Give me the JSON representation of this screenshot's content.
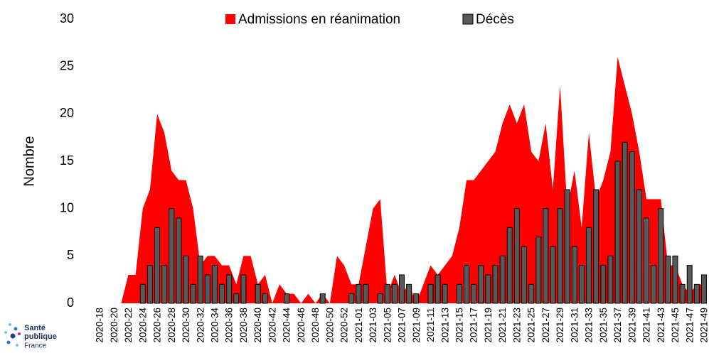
{
  "chart_data": {
    "type": "area-bar",
    "categories": [
      "2020-18",
      null,
      "2020-20",
      null,
      "2020-22",
      null,
      "2020-24",
      null,
      "2020-26",
      null,
      "2020-28",
      null,
      "2020-30",
      null,
      "2020-32",
      null,
      "2020-34",
      null,
      "2020-36",
      null,
      "2020-38",
      null,
      "2020-40",
      null,
      "2020-42",
      null,
      "2020-44",
      null,
      "2020-46",
      null,
      "2020-48",
      null,
      "2020-50",
      null,
      "2020-52",
      null,
      "2021-01",
      null,
      "2021-03",
      null,
      "2021-05",
      null,
      "2021-07",
      null,
      "2021-09",
      null,
      "2021-11",
      null,
      "2021-13",
      null,
      "2021-15",
      null,
      "2021-17",
      null,
      "2021-19",
      null,
      "2021-21",
      null,
      "2021-23",
      null,
      "2021-25",
      null,
      "2021-27",
      null,
      "2021-29",
      null,
      "2021-31",
      null,
      "2021-33",
      null,
      "2021-35",
      null,
      "2021-37",
      null,
      "2021-39",
      null,
      "2021-41",
      null,
      "2021-43",
      null,
      "2021-45",
      null,
      "2021-47",
      null,
      "2021-49"
    ],
    "series": [
      {
        "name": "Admissions en réanimation",
        "color": "#ff0000",
        "kind": "area",
        "values": [
          0,
          0,
          0,
          0,
          3,
          3,
          10,
          12,
          20,
          18,
          14,
          13,
          13,
          10,
          4,
          5,
          5,
          4,
          4,
          2,
          5,
          5,
          2,
          3,
          0,
          2,
          1,
          1,
          0,
          1,
          0,
          1,
          0,
          5,
          4,
          2,
          2,
          6,
          10,
          11,
          1,
          3,
          1,
          2,
          0,
          2,
          4,
          3,
          4,
          5,
          8,
          13,
          13,
          14,
          15,
          16,
          19,
          21,
          19,
          21,
          16,
          15,
          19,
          12,
          23,
          10,
          14,
          8,
          18,
          11,
          13,
          16,
          26,
          23,
          20,
          16,
          11,
          11,
          11,
          4,
          4,
          2,
          1,
          2,
          2
        ]
      },
      {
        "name": "Décès",
        "color": "#595959",
        "kind": "bar",
        "values": [
          0,
          0,
          0,
          0,
          0,
          0,
          2,
          4,
          8,
          4,
          10,
          9,
          5,
          2,
          5,
          3,
          4,
          2,
          3,
          1,
          3,
          0,
          2,
          1,
          0,
          0,
          1,
          0,
          0,
          0,
          0,
          1,
          0,
          0,
          0,
          1,
          2,
          2,
          0,
          1,
          2,
          2,
          3,
          2,
          1,
          0,
          2,
          3,
          2,
          0,
          2,
          4,
          2,
          4,
          3,
          4,
          5,
          8,
          10,
          6,
          2,
          7,
          10,
          6,
          10,
          12,
          6,
          4,
          8,
          12,
          4,
          5,
          15,
          17,
          16,
          12,
          9,
          4,
          10,
          5,
          5,
          2,
          4,
          2,
          3
        ]
      }
    ],
    "y_label": "Nombre",
    "ylim": [
      0,
      30
    ],
    "yticks": [
      0,
      5,
      10,
      15,
      20,
      25,
      30
    ],
    "grid": false
  },
  "logo": [
    "Santé",
    "publique",
    "France"
  ]
}
